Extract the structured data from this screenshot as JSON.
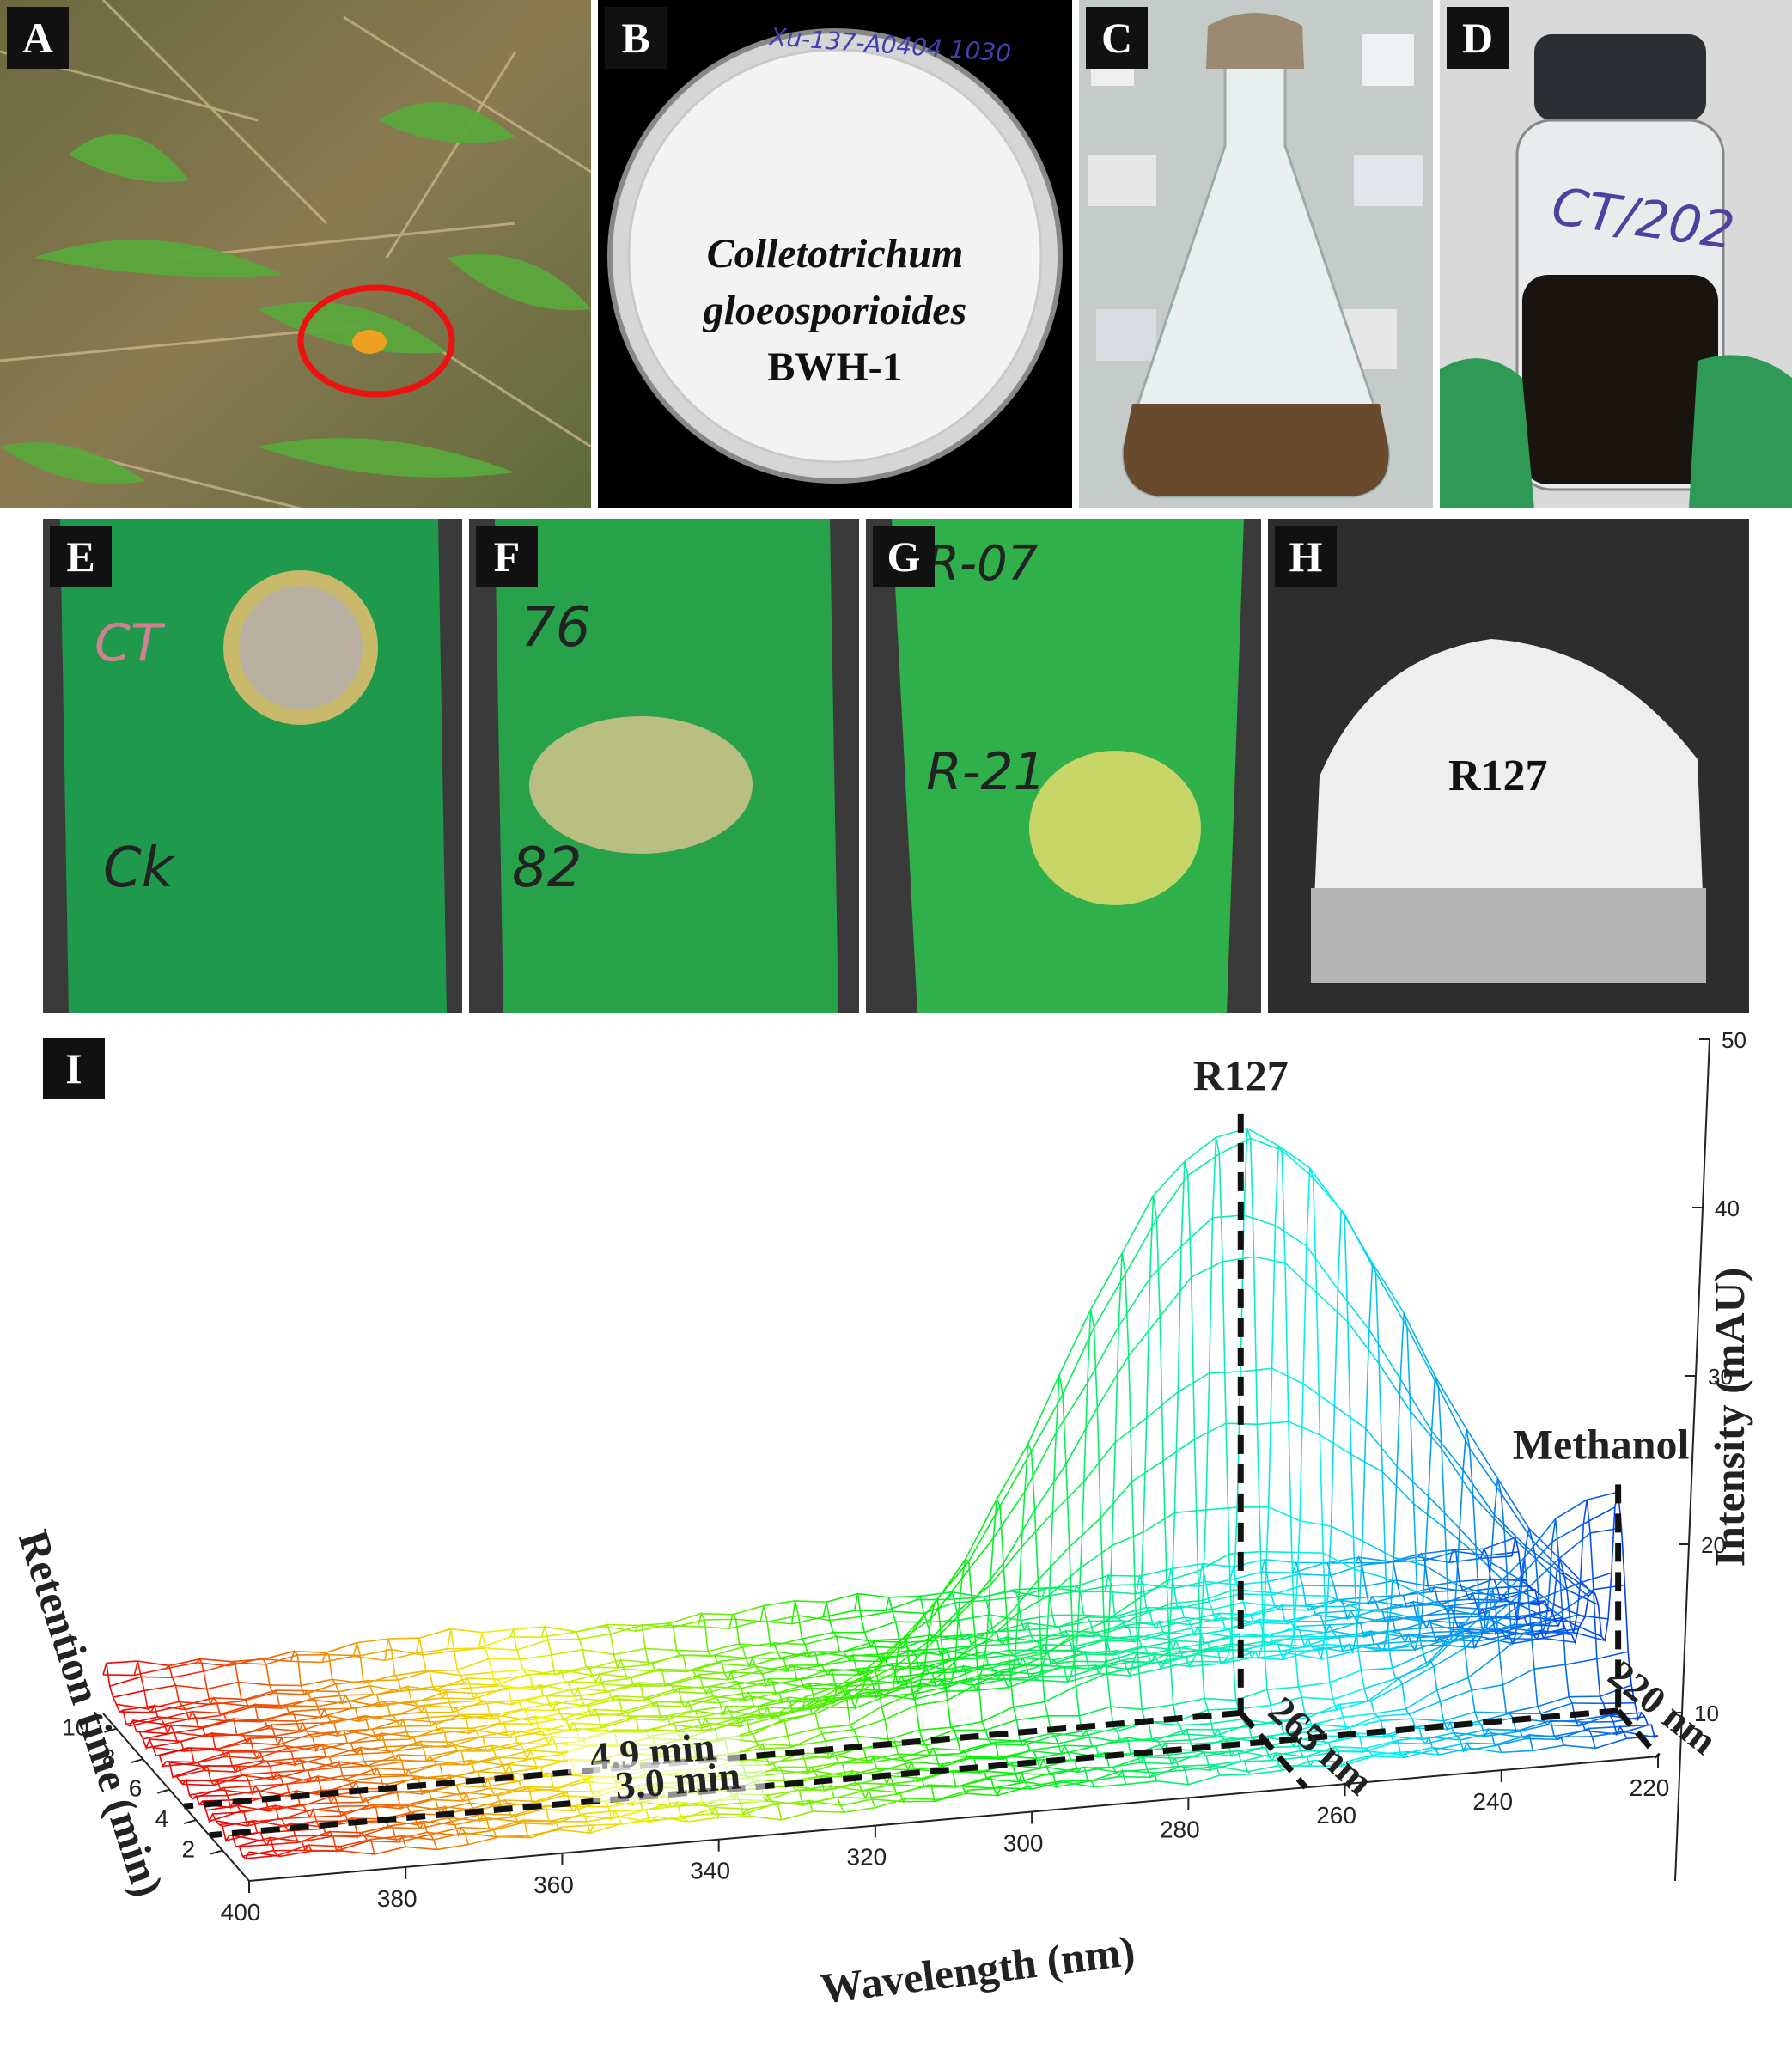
{
  "panels": {
    "A": {
      "label": "A"
    },
    "B": {
      "label": "B",
      "plate_label": "Xu-137-A0404 1030",
      "species_line1": "Colletotrichum",
      "species_line2": "gloeosporioides",
      "strain": "BWH-1"
    },
    "C": {
      "label": "C"
    },
    "D": {
      "label": "D",
      "bottle_label": "CT/202"
    },
    "E": {
      "label": "E",
      "mark_top": "CT",
      "mark_bottom": "Ck"
    },
    "F": {
      "label": "F",
      "mark_top": "76",
      "mark_bottom": "82"
    },
    "G": {
      "label": "G",
      "mark_top": "R-07",
      "mark_bottom": "R-21"
    },
    "H": {
      "label": "H",
      "compound": "R127"
    },
    "I": {
      "label": "I"
    }
  },
  "chart_data": {
    "type": "surface3d",
    "xlabel": "Wavelength (nm)",
    "ylabel": "Retention time (min)",
    "zlabel": "Intensity (mAU)",
    "x_ticks": [
      400,
      380,
      360,
      340,
      320,
      300,
      280,
      260,
      240,
      220
    ],
    "y_ticks": [
      2,
      4,
      6,
      8,
      10
    ],
    "z_ticks": [
      10,
      20,
      30,
      40,
      50
    ],
    "annotations": {
      "peak1_name": "R127",
      "peak2_name": "Methanol",
      "rt1": "4.9 min",
      "rt2": "3.0 min",
      "wl1": "265 nm",
      "wl2": "220 nm"
    },
    "peaks": [
      {
        "name": "R127",
        "retention_time_min": 4.9,
        "wavelength_nm": 265,
        "intensity_mAU": 45
      },
      {
        "name": "Methanol",
        "retention_time_min": 3.0,
        "wavelength_nm": 220,
        "intensity_mAU": 17
      }
    ]
  }
}
